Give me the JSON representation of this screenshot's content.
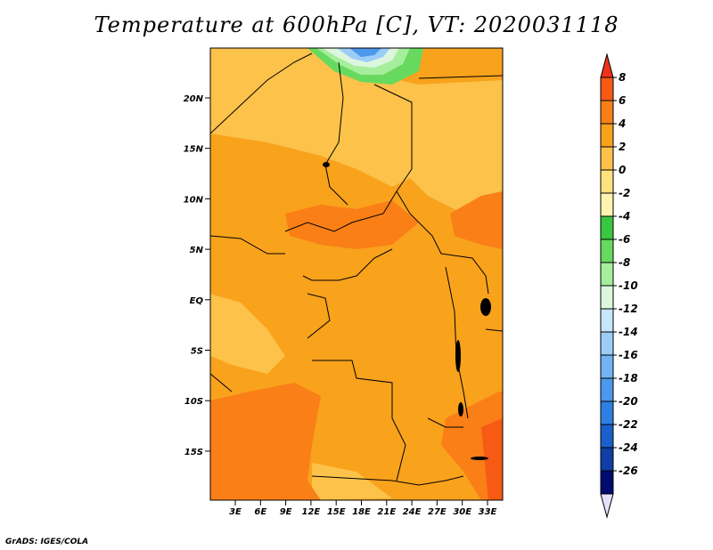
{
  "title": "Temperature at 600hPa [C], VT: 2020031118",
  "credit": "GrADS: IGES/COLA",
  "map": {
    "lat_labels": [
      "20N",
      "15N",
      "10N",
      "5N",
      "EQ",
      "5S",
      "10S",
      "15S"
    ],
    "lon_labels": [
      "3E",
      "6E",
      "9E",
      "12E",
      "15E",
      "18E",
      "21E",
      "24E",
      "27E",
      "30E",
      "33E"
    ]
  },
  "colorbar": {
    "labels": [
      "8",
      "6",
      "4",
      "2",
      "0",
      "-2",
      "-4",
      "-6",
      "-8",
      "-10",
      "-12",
      "-14",
      "-16",
      "-18",
      "-20",
      "-22",
      "-24",
      "-26"
    ],
    "colors": [
      "#f0321c",
      "#f75a14",
      "#f97f16",
      "#f9a21c",
      "#fcc24a",
      "#fde27d",
      "#fef4b0",
      "#39c640",
      "#67d95e",
      "#a5ee9b",
      "#dcf7dd",
      "#c6e6fb",
      "#9ccdf7",
      "#71b3f3",
      "#4b98ec",
      "#2f7fe2",
      "#1a5fcc",
      "#0f3ea5",
      "#000c6e",
      "#e6e0fb"
    ]
  }
}
